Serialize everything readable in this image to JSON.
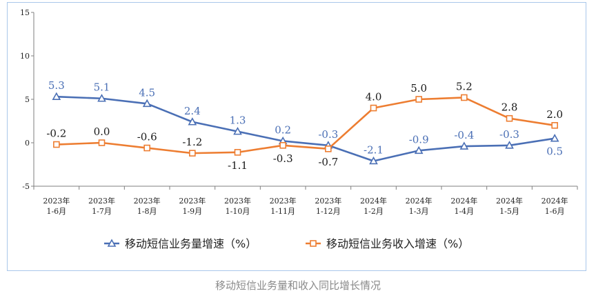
{
  "chart_data": {
    "type": "line",
    "title": "",
    "xlabel": "",
    "ylabel": "",
    "ylim": [
      -5,
      15
    ],
    "yticks": [
      -5,
      0,
      5,
      10,
      15
    ],
    "grid": false,
    "legend_position": "bottom",
    "categories": [
      [
        "2023年",
        "1-6月"
      ],
      [
        "2023年",
        "1-7月"
      ],
      [
        "2023年",
        "1-8月"
      ],
      [
        "2023年",
        "1-9月"
      ],
      [
        "2023年",
        "1-10月"
      ],
      [
        "2023年",
        "1-11月"
      ],
      [
        "2023年",
        "1-12月"
      ],
      [
        "2024年",
        "1-2月"
      ],
      [
        "2024年",
        "1-3月"
      ],
      [
        "2024年",
        "1-4月"
      ],
      [
        "2024年",
        "1-5月"
      ],
      [
        "2024年",
        "1-6月"
      ]
    ],
    "series": [
      {
        "name": "移动短信业务量增速（%）",
        "color": "#4a6fb5",
        "marker": "triangle",
        "label_color": "#4a6fb5",
        "values": [
          5.3,
          5.1,
          4.5,
          2.4,
          1.3,
          0.2,
          -0.3,
          -2.1,
          -0.9,
          -0.4,
          -0.3,
          0.5
        ],
        "labels": [
          "5.3",
          "5.1",
          "4.5",
          "2.4",
          "1.3",
          "0.2",
          "-0.3",
          "-2.1",
          "-0.9",
          "-0.4",
          "-0.3",
          "0.5"
        ],
        "label_side": [
          "above",
          "above",
          "above",
          "above",
          "above",
          "above",
          "above",
          "above",
          "above",
          "above",
          "above",
          "below"
        ]
      },
      {
        "name": "移动短信业务收入增速（%）",
        "color": "#ed7d31",
        "marker": "square",
        "label_color": "#1a1a1a",
        "values": [
          -0.2,
          0.0,
          -0.6,
          -1.2,
          -1.1,
          -0.3,
          -0.7,
          4.0,
          5.0,
          5.2,
          2.8,
          2.0
        ],
        "labels": [
          "-0.2",
          "0.0",
          "-0.6",
          "-1.2",
          "-1.1",
          "-0.3",
          "-0.7",
          "4.0",
          "5.0",
          "5.2",
          "2.8",
          "2.0"
        ],
        "label_side": [
          "above",
          "above",
          "above",
          "above",
          "below",
          "below",
          "below",
          "above",
          "above",
          "above",
          "above",
          "above"
        ]
      }
    ]
  },
  "caption": "移动短信业务量和收入同比增长情况"
}
